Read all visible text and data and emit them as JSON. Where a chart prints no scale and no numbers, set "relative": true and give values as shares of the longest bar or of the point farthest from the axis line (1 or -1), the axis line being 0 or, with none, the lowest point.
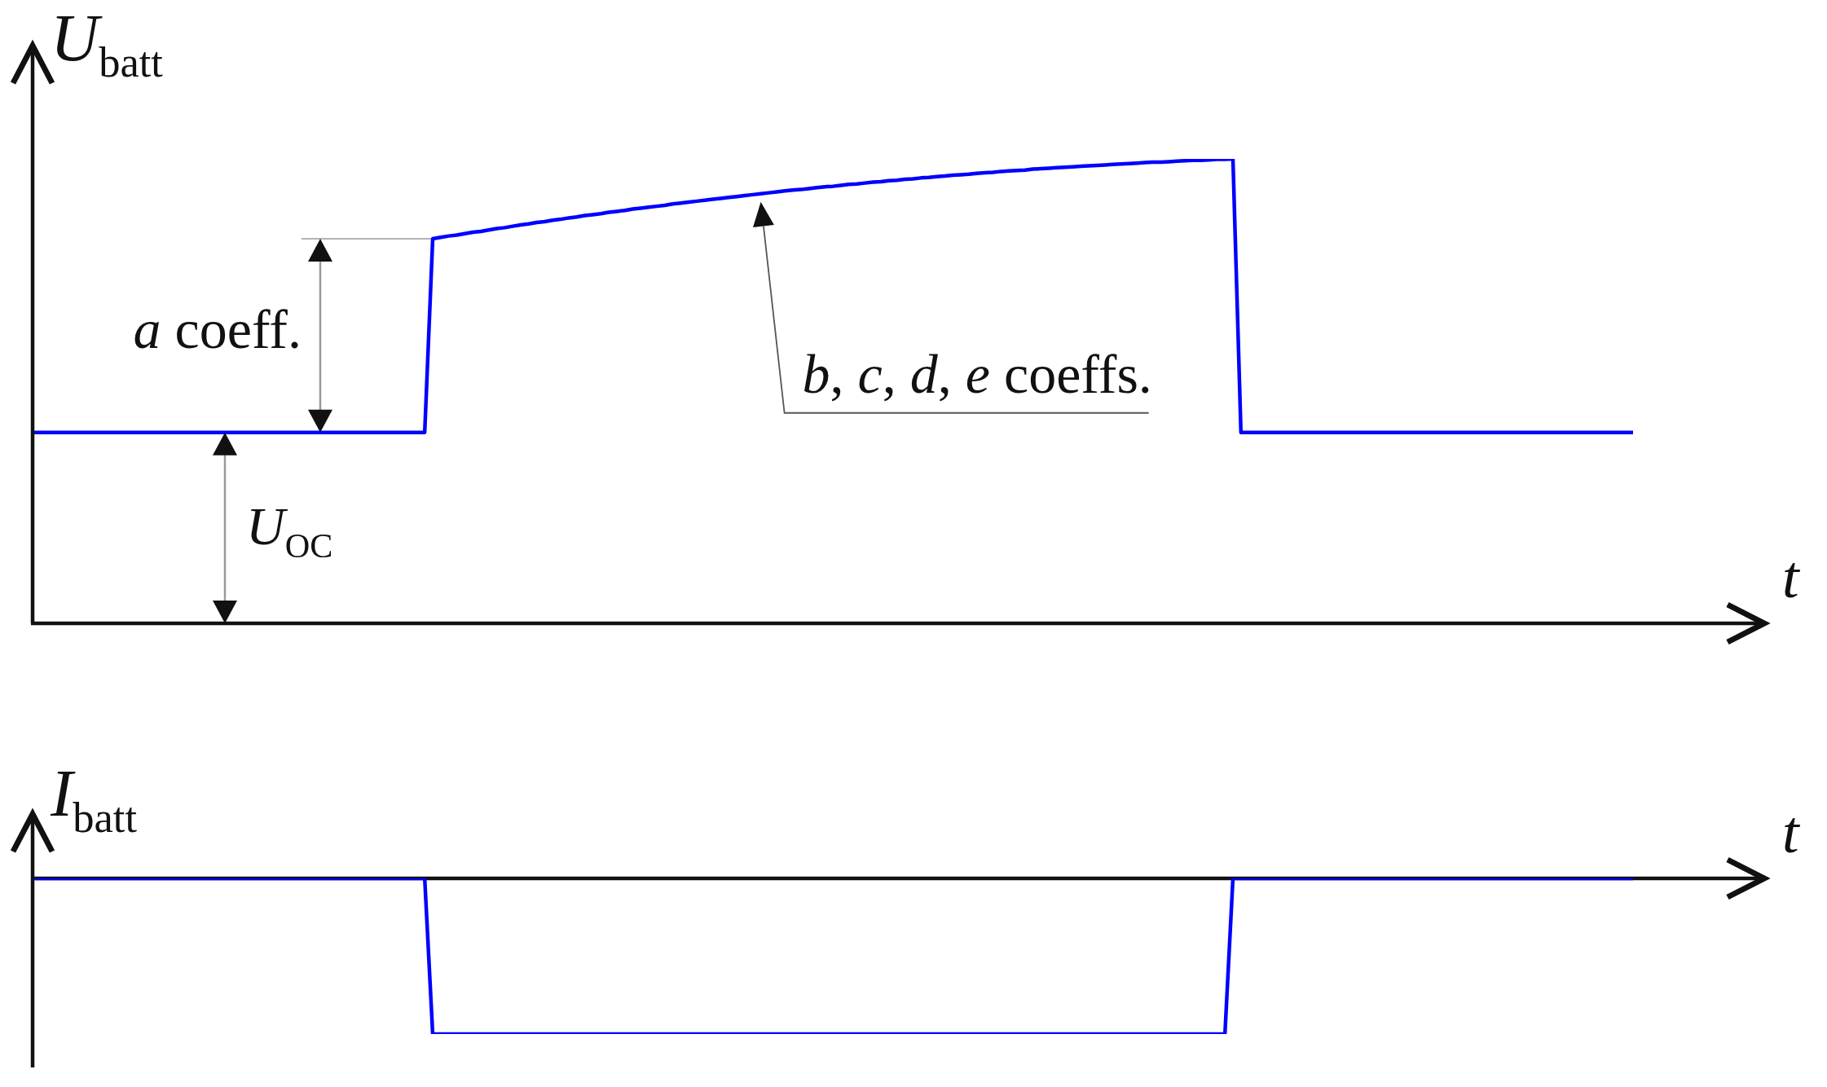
{
  "chart_data": [
    {
      "type": "line",
      "ylabel": "U$_{batt}$",
      "xlabel": "t",
      "relative": true,
      "categories": [
        null,
        null,
        null,
        null,
        null,
        null,
        null,
        null,
        null,
        null,
        null,
        null,
        null,
        null,
        null,
        null,
        null,
        null,
        null,
        null,
        null,
        null,
        null,
        null,
        null,
        null,
        null,
        null,
        null,
        null,
        null,
        null,
        null,
        null,
        null,
        null,
        null,
        null,
        null,
        null,
        null,
        null,
        null,
        null,
        null,
        null,
        null,
        null,
        null,
        null,
        null,
        null,
        null,
        null,
        null,
        null,
        null,
        null,
        null,
        null,
        null,
        null,
        null,
        null,
        null,
        null,
        null,
        null,
        null,
        null,
        null,
        null,
        null,
        null,
        null,
        null,
        null,
        null,
        null,
        null,
        null,
        null,
        null,
        null,
        null,
        null,
        null,
        null,
        null,
        null,
        null,
        null,
        null,
        null,
        null,
        null,
        null,
        null,
        null,
        null,
        null,
        null,
        null,
        null,
        null,
        null,
        null,
        null,
        null,
        null,
        null,
        null,
        null,
        null,
        null,
        null,
        null,
        null,
        null,
        null,
        null,
        null,
        null,
        null,
        null,
        null,
        null,
        null,
        null,
        null,
        null,
        null,
        null,
        null,
        null,
        null,
        null,
        null,
        null,
        null,
        null,
        null,
        null,
        null,
        null,
        null,
        null,
        null,
        null,
        null,
        null,
        null,
        null,
        null,
        null,
        null,
        null,
        null,
        null,
        null,
        null,
        null,
        null,
        null,
        null,
        null,
        null,
        null,
        null,
        null,
        null,
        null,
        null,
        null,
        null,
        null,
        null,
        null,
        null,
        null,
        null,
        null,
        null,
        null,
        null,
        null,
        null,
        null,
        null,
        null,
        null,
        null,
        null,
        null,
        null,
        null,
        null,
        null,
        null,
        null,
        null
      ],
      "series": [
        {
          "color": "#0000ff",
          "values": [
            0.411,
            0.411,
            0.411,
            0.411,
            0.411,
            0.411,
            0.411,
            0.411,
            0.411,
            0.411,
            0.411,
            0.411,
            0.411,
            0.411,
            0.411,
            0.411,
            0.411,
            0.411,
            0.411,
            0.411,
            0.411,
            0.411,
            0.411,
            0.411,
            0.411,
            0.411,
            0.411,
            0.411,
            0.411,
            0.411,
            0.411,
            0.411,
            0.411,
            0.411,
            0.411,
            0.411,
            0.411,
            0.411,
            0.411,
            0.411,
            0.411,
            0.411,
            0.411,
            0.411,
            0.411,
            0.411,
            0.411,
            0.411,
            0.411,
            0.411,
            0.828,
            0.831,
            0.834,
            0.836,
            0.839,
            0.842,
            0.844,
            0.847,
            0.85,
            0.852,
            0.855,
            0.858,
            0.86,
            0.863,
            0.865,
            0.868,
            0.87,
            0.873,
            0.875,
            0.878,
            0.88,
            0.882,
            0.885,
            0.887,
            0.889,
            0.892,
            0.894,
            0.896,
            0.898,
            0.9,
            0.903,
            0.905,
            0.907,
            0.909,
            0.911,
            0.913,
            0.915,
            0.917,
            0.919,
            0.921,
            0.923,
            0.925,
            0.927,
            0.929,
            0.931,
            0.933,
            0.934,
            0.936,
            0.938,
            0.94,
            0.941,
            0.943,
            0.945,
            0.946,
            0.948,
            0.95,
            0.951,
            0.953,
            0.954,
            0.956,
            0.957,
            0.959,
            0.96,
            0.962,
            0.963,
            0.965,
            0.966,
            0.967,
            0.969,
            0.97,
            0.971,
            0.973,
            0.974,
            0.975,
            0.976,
            0.978,
            0.979,
            0.98,
            0.981,
            0.982,
            0.983,
            0.984,
            0.985,
            0.986,
            0.987,
            0.988,
            0.989,
            0.99,
            0.991,
            0.992,
            0.993,
            0.993,
            0.994,
            0.995,
            0.996,
            0.997,
            0.997,
            0.998,
            0.999,
            0.999,
            1.0,
            0.411,
            0.411,
            0.411,
            0.411,
            0.411,
            0.411,
            0.411,
            0.411,
            0.411,
            0.411,
            0.411,
            0.411,
            0.411,
            0.411,
            0.411,
            0.411,
            0.411,
            0.411,
            0.411,
            0.411,
            0.411,
            0.411,
            0.411,
            0.411,
            0.411,
            0.411,
            0.411,
            0.411,
            0.411,
            0.411,
            0.411,
            0.411,
            0.411,
            0.411,
            0.411,
            0.411,
            0.411,
            0.411,
            0.411,
            0.411,
            0.411,
            0.411,
            0.411,
            0.411,
            0.411,
            0.411,
            0.411,
            0.411,
            0.411,
            0.411
          ]
        }
      ],
      "annotations": [
        "a coeff.",
        "b, c, d, e coeffs.",
        "U$_{OC}$"
      ]
    },
    {
      "type": "line",
      "ylabel": "I$_{batt}$",
      "xlabel": "t",
      "relative": true,
      "categories": [
        null,
        null,
        null,
        null,
        null,
        null,
        null,
        null,
        null,
        null,
        null,
        null,
        null,
        null,
        null,
        null,
        null,
        null,
        null,
        null,
        null,
        null,
        null,
        null,
        null,
        null,
        null,
        null,
        null,
        null,
        null,
        null,
        null,
        null,
        null,
        null,
        null,
        null,
        null,
        null,
        null,
        null,
        null,
        null,
        null,
        null,
        null,
        null,
        null,
        null,
        null,
        null,
        null,
        null,
        null,
        null,
        null,
        null,
        null,
        null,
        null,
        null,
        null,
        null,
        null,
        null,
        null,
        null,
        null,
        null,
        null,
        null,
        null,
        null,
        null,
        null,
        null,
        null,
        null,
        null,
        null,
        null,
        null,
        null,
        null,
        null,
        null,
        null,
        null,
        null,
        null,
        null,
        null,
        null,
        null,
        null,
        null,
        null,
        null,
        null,
        null,
        null,
        null,
        null,
        null,
        null,
        null,
        null,
        null,
        null,
        null,
        null,
        null,
        null,
        null,
        null,
        null,
        null,
        null,
        null,
        null,
        null,
        null,
        null,
        null,
        null,
        null,
        null,
        null,
        null,
        null,
        null,
        null,
        null,
        null,
        null,
        null,
        null,
        null,
        null,
        null,
        null,
        null,
        null,
        null,
        null,
        null,
        null,
        null,
        null,
        null,
        null,
        null,
        null,
        null,
        null,
        null,
        null,
        null,
        null,
        null,
        null,
        null,
        null,
        null,
        null,
        null,
        null,
        null,
        null,
        null,
        null,
        null,
        null,
        null,
        null,
        null,
        null,
        null,
        null,
        null,
        null,
        null,
        null,
        null,
        null,
        null,
        null,
        null,
        null,
        null,
        null,
        null,
        null,
        null,
        null,
        null,
        null,
        null,
        null,
        null
      ],
      "series": [
        {
          "color": "#0000ff",
          "values": [
            0,
            0,
            0,
            0,
            0,
            0,
            0,
            0,
            0,
            0,
            0,
            0,
            0,
            0,
            0,
            0,
            0,
            0,
            0,
            0,
            0,
            0,
            0,
            0,
            0,
            0,
            0,
            0,
            0,
            0,
            0,
            0,
            0,
            0,
            0,
            0,
            0,
            0,
            0,
            0,
            0,
            0,
            0,
            0,
            0,
            0,
            0,
            0,
            0,
            0,
            -1,
            -1,
            -1,
            -1,
            -1,
            -1,
            -1,
            -1,
            -1,
            -1,
            -1,
            -1,
            -1,
            -1,
            -1,
            -1,
            -1,
            -1,
            -1,
            -1,
            -1,
            -1,
            -1,
            -1,
            -1,
            -1,
            -1,
            -1,
            -1,
            -1,
            -1,
            -1,
            -1,
            -1,
            -1,
            -1,
            -1,
            -1,
            -1,
            -1,
            -1,
            -1,
            -1,
            -1,
            -1,
            -1,
            -1,
            -1,
            -1,
            -1,
            -1,
            -1,
            -1,
            -1,
            -1,
            -1,
            -1,
            -1,
            -1,
            -1,
            -1,
            -1,
            -1,
            -1,
            -1,
            -1,
            -1,
            -1,
            -1,
            -1,
            -1,
            -1,
            -1,
            -1,
            -1,
            -1,
            -1,
            -1,
            -1,
            -1,
            -1,
            -1,
            -1,
            -1,
            -1,
            -1,
            -1,
            -1,
            -1,
            -1,
            -1,
            -1,
            -1,
            -1,
            -1,
            -1,
            -1,
            -1,
            -1,
            -1,
            0,
            0,
            0,
            0,
            0,
            0,
            0,
            0,
            0,
            0,
            0,
            0,
            0,
            0,
            0,
            0,
            0,
            0,
            0,
            0,
            0,
            0,
            0,
            0,
            0,
            0,
            0,
            0,
            0,
            0,
            0,
            0,
            0,
            0,
            0,
            0,
            0,
            0,
            0,
            0,
            0,
            0,
            0,
            0,
            0,
            0,
            0,
            0,
            0,
            0,
            0
          ]
        }
      ]
    }
  ]
}
